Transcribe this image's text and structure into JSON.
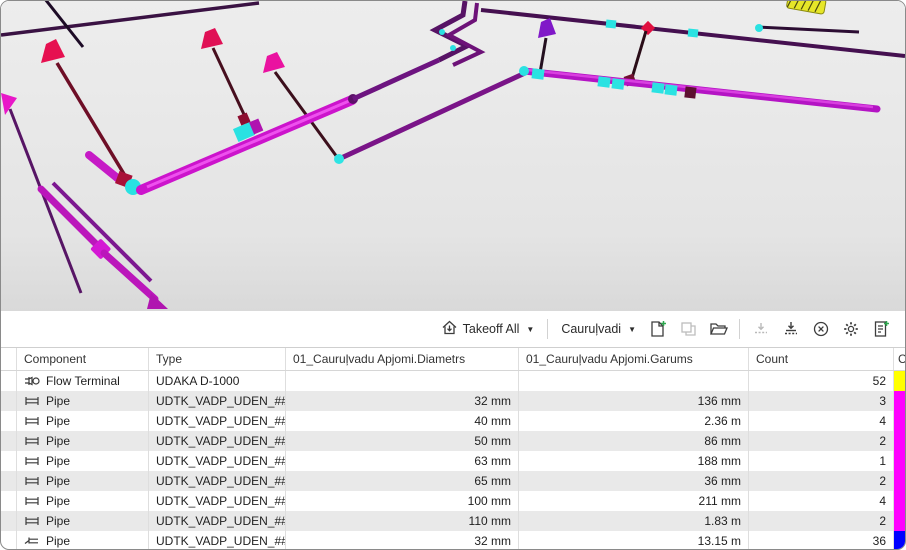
{
  "toolbar": {
    "takeoff_all_label": "Takeoff All",
    "takeoff_set_label": "Cauruļvadi",
    "icons": [
      "takeoff-home-icon",
      "dropdown-caret-icon",
      "new-takeoff-icon",
      "duplicate-takeoff-icon",
      "open-folder-icon",
      "import-icon",
      "export-icon",
      "cancel-circle-icon",
      "settings-gear-icon",
      "report-plus-icon"
    ]
  },
  "table": {
    "headers": {
      "component": "Component",
      "type": "Type",
      "diametrs": "01_Cauruļvadu Apjomi.Diametrs",
      "garums": "01_Cauruļvadu Apjomi.Garums",
      "count": "Count",
      "color": "Col"
    },
    "rows": [
      {
        "icon": "flow-terminal",
        "component": "Flow Terminal",
        "type": "UDAKA D-1000",
        "diametrs": "",
        "garums": "",
        "count": "52",
        "color": "#ffff00"
      },
      {
        "icon": "pipe",
        "component": "Pipe",
        "type": "UDTK_VADP_UDEN_####...",
        "diametrs": "32 mm",
        "garums": "136 mm",
        "count": "3",
        "color": "#ff00ff"
      },
      {
        "icon": "pipe",
        "component": "Pipe",
        "type": "UDTK_VADP_UDEN_####...",
        "diametrs": "40 mm",
        "garums": "2.36 m",
        "count": "4",
        "color": "#ff00ff"
      },
      {
        "icon": "pipe",
        "component": "Pipe",
        "type": "UDTK_VADP_UDEN_####...",
        "diametrs": "50 mm",
        "garums": "86 mm",
        "count": "2",
        "color": "#ff00ff"
      },
      {
        "icon": "pipe",
        "component": "Pipe",
        "type": "UDTK_VADP_UDEN_####...",
        "diametrs": "63 mm",
        "garums": "188 mm",
        "count": "1",
        "color": "#ff00ff"
      },
      {
        "icon": "pipe",
        "component": "Pipe",
        "type": "UDTK_VADP_UDEN_####...",
        "diametrs": "65 mm",
        "garums": "36 mm",
        "count": "2",
        "color": "#ff00ff"
      },
      {
        "icon": "pipe",
        "component": "Pipe",
        "type": "UDTK_VADP_UDEN_####...",
        "diametrs": "100 mm",
        "garums": "211 mm",
        "count": "4",
        "color": "#ff00ff"
      },
      {
        "icon": "pipe",
        "component": "Pipe",
        "type": "UDTK_VADP_UDEN_####...",
        "diametrs": "110 mm",
        "garums": "1.83 m",
        "count": "2",
        "color": "#ff00ff"
      },
      {
        "icon": "pipe-sloped",
        "component": "Pipe",
        "type": "UDTK_VADP_UDEN_####_I",
        "diametrs": "32 mm",
        "garums": "13.15 m",
        "count": "36",
        "color": "#0000ff"
      }
    ]
  },
  "viewport": {
    "palette": {
      "background": "#e9e9e9",
      "pipe_magenta": "#cc14cc",
      "pipe_purple": "#6d1480",
      "pipe_dark_red": "#6e0e26",
      "fitting_cyan": "#2ae2e2",
      "terminal_red": "#e61050",
      "terminal_magenta": "#ea12a0",
      "terminal_purple": "#8018c8",
      "terminal_yellow": "#e6e628"
    }
  }
}
